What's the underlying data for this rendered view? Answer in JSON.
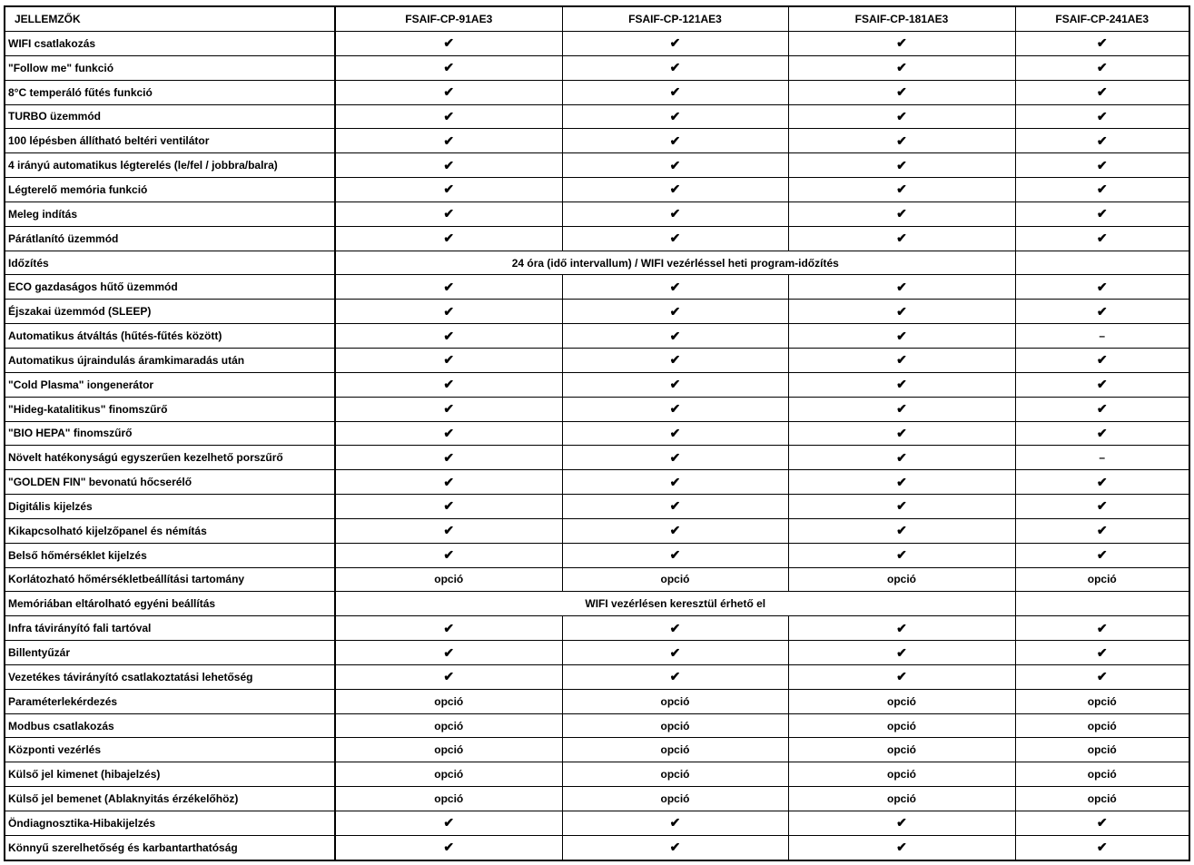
{
  "header": {
    "features_label": "JELLEMZŐK",
    "models": [
      "FSAIF-CP-91AE3",
      "FSAIF-CP-121AE3",
      "FSAIF-CP-181AE3",
      "FSAIF-CP-241AE3"
    ]
  },
  "symbols": {
    "check": "✔",
    "dash": "–",
    "option": "opció"
  },
  "rows": [
    {
      "label": "WIFI csatlakozás",
      "values": [
        "check",
        "check",
        "check",
        "check"
      ]
    },
    {
      "label": "\"Follow me\" funkció",
      "values": [
        "check",
        "check",
        "check",
        "check"
      ]
    },
    {
      "label": "8°C  temperáló fűtés funkció",
      "values": [
        "check",
        "check",
        "check",
        "check"
      ]
    },
    {
      "label": "TURBO üzemmód",
      "values": [
        "check",
        "check",
        "check",
        "check"
      ]
    },
    {
      "label": "100 lépésben állítható beltéri ventilátor",
      "values": [
        "check",
        "check",
        "check",
        "check"
      ]
    },
    {
      "label": "4 irányú automatikus légterelés (le/fel / jobbra/balra)",
      "values": [
        "check",
        "check",
        "check",
        "check"
      ]
    },
    {
      "label": "Légterelő memória funkció",
      "values": [
        "check",
        "check",
        "check",
        "check"
      ]
    },
    {
      "label": "Meleg indítás",
      "values": [
        "check",
        "check",
        "check",
        "check"
      ]
    },
    {
      "label": "Párátlanító üzemmód",
      "values": [
        "check",
        "check",
        "check",
        "check"
      ]
    },
    {
      "label": "Időzítés",
      "merged": "24 óra (idő intervallum)  /  WIFI vezérléssel heti program-időzítés"
    },
    {
      "label": "ECO gazdaságos hűtő üzemmód",
      "values": [
        "check",
        "check",
        "check",
        "check"
      ]
    },
    {
      "label": "Éjszakai üzemmód (SLEEP)",
      "values": [
        "check",
        "check",
        "check",
        "check"
      ]
    },
    {
      "label": "Automatikus átváltás (hűtés-fűtés között)",
      "values": [
        "check",
        "check",
        "check",
        "dash"
      ]
    },
    {
      "label": "Automatikus újraindulás áramkimaradás után",
      "values": [
        "check",
        "check",
        "check",
        "check"
      ]
    },
    {
      "label": "\"Cold Plasma\"  iongenerátor",
      "values": [
        "check",
        "check",
        "check",
        "check"
      ]
    },
    {
      "label": "\"Hideg-katalitikus\" finomszűrő",
      "values": [
        "check",
        "check",
        "check",
        "check"
      ]
    },
    {
      "label": "\"BIO HEPA\" finomszűrő",
      "values": [
        "check",
        "check",
        "check",
        "check"
      ]
    },
    {
      "label": "Növelt hatékonyságú egyszerűen kezelhető porszűrő",
      "values": [
        "check",
        "check",
        "check",
        "dash"
      ]
    },
    {
      "label": "\"GOLDEN FIN\" bevonatú hőcserélő",
      "values": [
        "check",
        "check",
        "check",
        "check"
      ]
    },
    {
      "label": "Digitális kijelzés",
      "values": [
        "check",
        "check",
        "check",
        "check"
      ]
    },
    {
      "label": "Kikapcsolható kijelzőpanel és némítás",
      "values": [
        "check",
        "check",
        "check",
        "check"
      ]
    },
    {
      "label": "Belső hőmérséklet kijelzés",
      "values": [
        "check",
        "check",
        "check",
        "check"
      ]
    },
    {
      "label": "Korlátozható hőmérsékletbeállítási tartomány",
      "values": [
        "option",
        "option",
        "option",
        "option"
      ]
    },
    {
      "label": "Memóriában eltárolható egyéni beállítás",
      "merged": "WIFI vezérlésen keresztül érhető el"
    },
    {
      "label": "Infra távirányító fali tartóval",
      "values": [
        "check",
        "check",
        "check",
        "check"
      ]
    },
    {
      "label": "Billentyűzár",
      "values": [
        "check",
        "check",
        "check",
        "check"
      ]
    },
    {
      "label": "Vezetékes távirányító csatlakoztatási lehetőség",
      "values": [
        "check",
        "check",
        "check",
        "check"
      ]
    },
    {
      "label": "Paraméterlekérdezés",
      "values": [
        "option",
        "option",
        "option",
        "option"
      ]
    },
    {
      "label": "Modbus csatlakozás",
      "values": [
        "option",
        "option",
        "option",
        "option"
      ]
    },
    {
      "label": "Központi vezérlés",
      "values": [
        "option",
        "option",
        "option",
        "option"
      ]
    },
    {
      "label": "Külső jel kimenet (hibajelzés)",
      "values": [
        "option",
        "option",
        "option",
        "option"
      ]
    },
    {
      "label": "Külső jel bemenet (Ablaknyitás érzékelőhöz)",
      "values": [
        "option",
        "option",
        "option",
        "option"
      ]
    },
    {
      "label": "Öndiagnosztika-Hibakijelzés",
      "values": [
        "check",
        "check",
        "check",
        "check"
      ]
    },
    {
      "label": "Könnyű szerelhetőség és karbantarthatóság",
      "values": [
        "check",
        "check",
        "check",
        "check"
      ]
    }
  ]
}
